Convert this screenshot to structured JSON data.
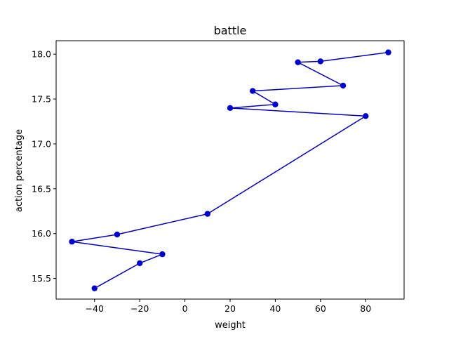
{
  "chart_data": {
    "type": "line",
    "title": "battle",
    "xlabel": "weight",
    "ylabel": "action percentage",
    "xlim": [
      -57,
      97
    ],
    "ylim": [
      15.27,
      18.15
    ],
    "x_ticks": [
      -40,
      -20,
      0,
      20,
      40,
      60,
      80
    ],
    "x_tick_labels": [
      "−40",
      "−20",
      "0",
      "20",
      "40",
      "60",
      "80"
    ],
    "y_ticks": [
      15.5,
      16.0,
      16.5,
      17.0,
      17.5,
      18.0
    ],
    "y_tick_labels": [
      "15.5",
      "16.0",
      "16.5",
      "17.0",
      "17.5",
      "18.0"
    ],
    "grid": false,
    "series": [
      {
        "color": "#0000cc",
        "marker": "circle",
        "x": [
          -40,
          -20,
          -10,
          -50,
          -30,
          10,
          80,
          20,
          40,
          30,
          70,
          50,
          60,
          90
        ],
        "y": [
          15.39,
          15.67,
          15.77,
          15.91,
          15.99,
          16.22,
          17.31,
          17.4,
          17.44,
          17.59,
          17.65,
          17.91,
          17.92,
          18.02
        ]
      }
    ]
  }
}
